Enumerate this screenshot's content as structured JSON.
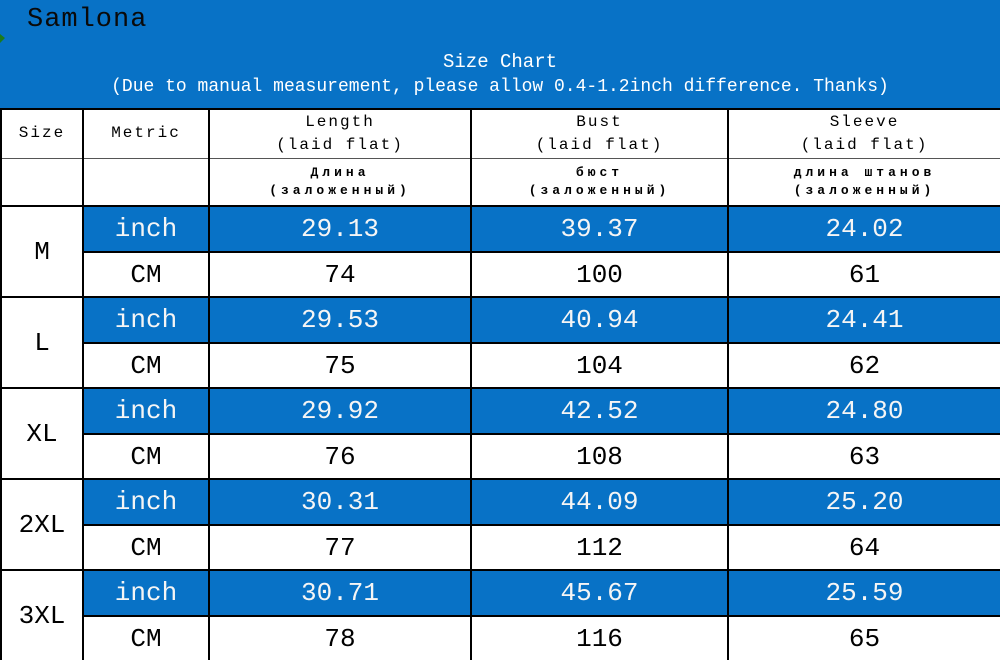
{
  "brand": "Samlona",
  "chart_data": {
    "type": "table",
    "title": "Size Chart",
    "subtitle": "(Due to manual measurement, please allow 0.4-1.2inch difference. Thanks)",
    "columns": [
      {
        "en": "Size",
        "sub": "",
        "ru": "",
        "ru_sub": ""
      },
      {
        "en": "Metric",
        "sub": "",
        "ru": "",
        "ru_sub": ""
      },
      {
        "en": "Length",
        "sub": "(laid flat)",
        "ru": "Длина",
        "ru_sub": "(заложенный)"
      },
      {
        "en": "Bust",
        "sub": "(laid flat)",
        "ru": "бюст",
        "ru_sub": "(заложенный)"
      },
      {
        "en": "Sleeve",
        "sub": "(laid flat)",
        "ru": "длина штанов",
        "ru_sub": "(заложенный)"
      }
    ],
    "unit_labels": {
      "inch": "inch",
      "cm": "CM"
    },
    "sizes": [
      {
        "size": "M",
        "inch": [
          "29.13",
          "39.37",
          "24.02"
        ],
        "cm": [
          "74",
          "100",
          "61"
        ]
      },
      {
        "size": "L",
        "inch": [
          "29.53",
          "40.94",
          "24.41"
        ],
        "cm": [
          "75",
          "104",
          "62"
        ]
      },
      {
        "size": "XL",
        "inch": [
          "29.92",
          "42.52",
          "24.80"
        ],
        "cm": [
          "76",
          "108",
          "63"
        ]
      },
      {
        "size": "2XL",
        "inch": [
          "30.31",
          "44.09",
          "25.20"
        ],
        "cm": [
          "77",
          "112",
          "64"
        ]
      },
      {
        "size": "3XL",
        "inch": [
          "30.71",
          "45.67",
          "25.59"
        ],
        "cm": [
          "78",
          "116",
          "65"
        ]
      }
    ]
  },
  "colors": {
    "banner_blue": "#0872c6",
    "row_blue": "#0872c6",
    "banner_text": "#ffffff",
    "table_text": "#000000",
    "green_mark": "#1c7a1c"
  }
}
